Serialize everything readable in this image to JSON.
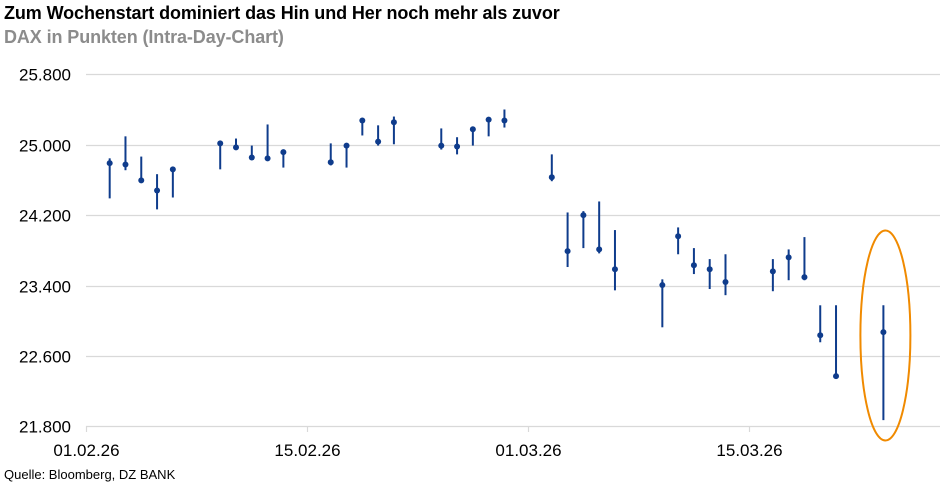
{
  "header": {
    "title": "Zum Wochenstart dominiert das Hin und Her noch mehr als zuvor",
    "subtitle": "DAX in Punkten (Intra-Day-Chart)"
  },
  "footer": {
    "source": "Quelle: Bloomberg, DZ BANK"
  },
  "colors": {
    "series": "#0F3C8C",
    "gridline": "#D9D9D9",
    "highlight": "#F08A00",
    "subtitle": "#8C8C8C"
  },
  "chart_data": {
    "type": "high-low-close",
    "title": "Zum Wochenstart dominiert das Hin und Her noch mehr als zuvor",
    "subtitle": "DAX in Punkten (Intra-Day-Chart)",
    "xlabel": "",
    "ylabel": "",
    "ylim": [
      21800,
      25800
    ],
    "yticks": [
      25800,
      25000,
      24200,
      23400,
      22600,
      21800
    ],
    "ytick_labels": [
      "25.800",
      "25.000",
      "24.200",
      "23.400",
      "22.600",
      "21.800"
    ],
    "xticks": [
      "01.02.26",
      "15.02.26",
      "01.03.26",
      "15.03.26"
    ],
    "grid": true,
    "legend": "none",
    "annotation": "orange ellipse highlighting the last trading day (23.03.26)",
    "series": [
      {
        "name": "DAX",
        "points": [
          {
            "date": "02.02.26",
            "high": 24845,
            "low": 24390,
            "close": 24790
          },
          {
            "date": "03.02.26",
            "high": 25095,
            "low": 24710,
            "close": 24775
          },
          {
            "date": "04.02.26",
            "high": 24865,
            "low": 24570,
            "close": 24595
          },
          {
            "date": "05.02.26",
            "high": 24665,
            "low": 24265,
            "close": 24480
          },
          {
            "date": "06.02.26",
            "high": 24730,
            "low": 24400,
            "close": 24720
          },
          {
            "date": "09.02.26",
            "high": 25035,
            "low": 24720,
            "close": 25015
          },
          {
            "date": "10.02.26",
            "high": 25070,
            "low": 24945,
            "close": 24970
          },
          {
            "date": "11.02.26",
            "high": 24990,
            "low": 24845,
            "close": 24855
          },
          {
            "date": "12.02.26",
            "high": 25230,
            "low": 24835,
            "close": 24845
          },
          {
            "date": "13.02.26",
            "high": 24945,
            "low": 24740,
            "close": 24915
          },
          {
            "date": "16.02.26",
            "high": 25015,
            "low": 24765,
            "close": 24800
          },
          {
            "date": "17.02.26",
            "high": 25015,
            "low": 24740,
            "close": 24990
          },
          {
            "date": "18.02.26",
            "high": 25300,
            "low": 25105,
            "close": 25275
          },
          {
            "date": "19.02.26",
            "high": 25220,
            "low": 24990,
            "close": 25035
          },
          {
            "date": "20.02.26",
            "high": 25320,
            "low": 25005,
            "close": 25255
          },
          {
            "date": "23.02.26",
            "high": 25185,
            "low": 24945,
            "close": 24990
          },
          {
            "date": "24.02.26",
            "high": 25085,
            "low": 24890,
            "close": 24980
          },
          {
            "date": "25.02.26",
            "high": 25185,
            "low": 24990,
            "close": 25175
          },
          {
            "date": "26.02.26",
            "high": 25300,
            "low": 25095,
            "close": 25285
          },
          {
            "date": "27.02.26",
            "high": 25400,
            "low": 25195,
            "close": 25275
          },
          {
            "date": "02.03.26",
            "high": 24890,
            "low": 24585,
            "close": 24630
          },
          {
            "date": "03.03.26",
            "high": 24230,
            "low": 23610,
            "close": 23790
          },
          {
            "date": "04.03.26",
            "high": 24245,
            "low": 23825,
            "close": 24200
          },
          {
            "date": "05.03.26",
            "high": 24355,
            "low": 23765,
            "close": 23810
          },
          {
            "date": "06.03.26",
            "high": 24030,
            "low": 23345,
            "close": 23585
          },
          {
            "date": "09.03.26",
            "high": 23470,
            "low": 22925,
            "close": 23405
          },
          {
            "date": "10.03.26",
            "high": 24060,
            "low": 23755,
            "close": 23960
          },
          {
            "date": "11.03.26",
            "high": 23825,
            "low": 23530,
            "close": 23630
          },
          {
            "date": "12.03.26",
            "high": 23700,
            "low": 23360,
            "close": 23585
          },
          {
            "date": "13.03.26",
            "high": 23755,
            "low": 23290,
            "close": 23440
          },
          {
            "date": "16.03.26",
            "high": 23700,
            "low": 23335,
            "close": 23560
          },
          {
            "date": "17.03.26",
            "high": 23810,
            "low": 23460,
            "close": 23720
          },
          {
            "date": "18.03.26",
            "high": 23950,
            "low": 23460,
            "close": 23495
          },
          {
            "date": "19.03.26",
            "high": 23175,
            "low": 22755,
            "close": 22835
          },
          {
            "date": "20.03.26",
            "high": 23175,
            "low": 22370,
            "close": 22370
          },
          {
            "date": "23.03.26",
            "high": 23175,
            "low": 21870,
            "close": 22870
          }
        ]
      }
    ]
  }
}
